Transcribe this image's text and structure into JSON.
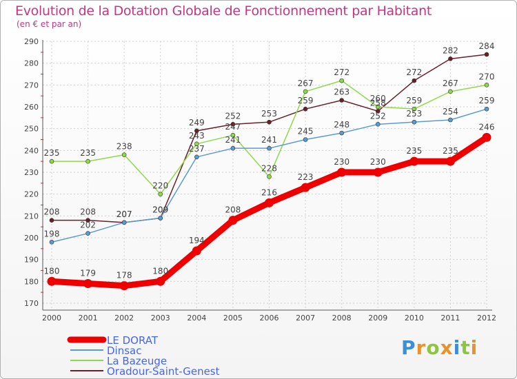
{
  "chart_data": {
    "type": "line",
    "title": "Evolution de la Dotation Globale de Fonctionnement par Habitant",
    "subtitle": "(en € et par an)",
    "xlabel": "",
    "ylabel": "",
    "x": [
      "2000",
      "2001",
      "2002",
      "2003",
      "2004",
      "2005",
      "2006",
      "2007",
      "2008",
      "2009",
      "2010",
      "2011",
      "2012"
    ],
    "yticks": [
      "170",
      "180",
      "190",
      "200",
      "210",
      "220",
      "230",
      "240",
      "250",
      "260",
      "270",
      "280",
      "290"
    ],
    "ylim": [
      170,
      290
    ],
    "grid": true,
    "legend": "bottom-left",
    "series": [
      {
        "name": "Oradour-Saint-Genest",
        "color": "#6b1e27",
        "values": [
          208,
          208,
          207,
          209,
          249,
          252,
          253,
          259,
          263,
          258,
          272,
          282,
          284
        ],
        "labels": [
          "208",
          "208",
          "207",
          "209",
          "249",
          "252",
          "253",
          "259",
          "263",
          "258",
          "272",
          "282",
          "284"
        ]
      },
      {
        "name": "La Bazeuge",
        "color": "#8fd84a",
        "values": [
          235,
          235,
          238,
          220,
          243,
          247,
          228,
          267,
          272,
          260,
          259,
          267,
          270
        ],
        "labels": [
          "235",
          "235",
          "238",
          "220",
          "243",
          "247",
          "228",
          "267",
          "272",
          "260",
          "259",
          "267",
          "270"
        ]
      },
      {
        "name": "Dinsac",
        "color": "#5a9ad2",
        "values": [
          198,
          202,
          207,
          209,
          237,
          241,
          241,
          245,
          248,
          252,
          253,
          254,
          259
        ],
        "labels": [
          "198",
          "202",
          "207",
          "209",
          "237",
          "241",
          "241",
          "245",
          "248",
          "252",
          "253",
          "254",
          "259"
        ]
      },
      {
        "name": "LE DORAT",
        "color": "#ee0000",
        "values": [
          180,
          179,
          178,
          180,
          194,
          208,
          216,
          223,
          230,
          230,
          235,
          235,
          246
        ],
        "labels": [
          "180",
          "179",
          "178",
          "180",
          "194",
          "208",
          "216",
          "223",
          "230",
          "230",
          "235",
          "235",
          "246"
        ]
      }
    ],
    "legend_entries": [
      {
        "name": "LE DORAT",
        "color": "#ee0000"
      },
      {
        "name": "Dinsac",
        "color": "#5a9ad2"
      },
      {
        "name": "La Bazeuge",
        "color": "#8fd84a"
      },
      {
        "name": "Oradour-Saint-Genest",
        "color": "#6b1e27"
      }
    ]
  },
  "brand": {
    "letters": [
      {
        "char": "P",
        "color": "#3a8fd8"
      },
      {
        "char": "r",
        "color": "#e8922a"
      },
      {
        "char": "o",
        "color": "#8cc63f"
      },
      {
        "char": "x",
        "color": "#e8922a"
      },
      {
        "char": "i",
        "color": "#3a8fd8"
      },
      {
        "char": "t",
        "color": "#8cc63f"
      },
      {
        "char": "i",
        "color": "#e8922a"
      }
    ]
  }
}
